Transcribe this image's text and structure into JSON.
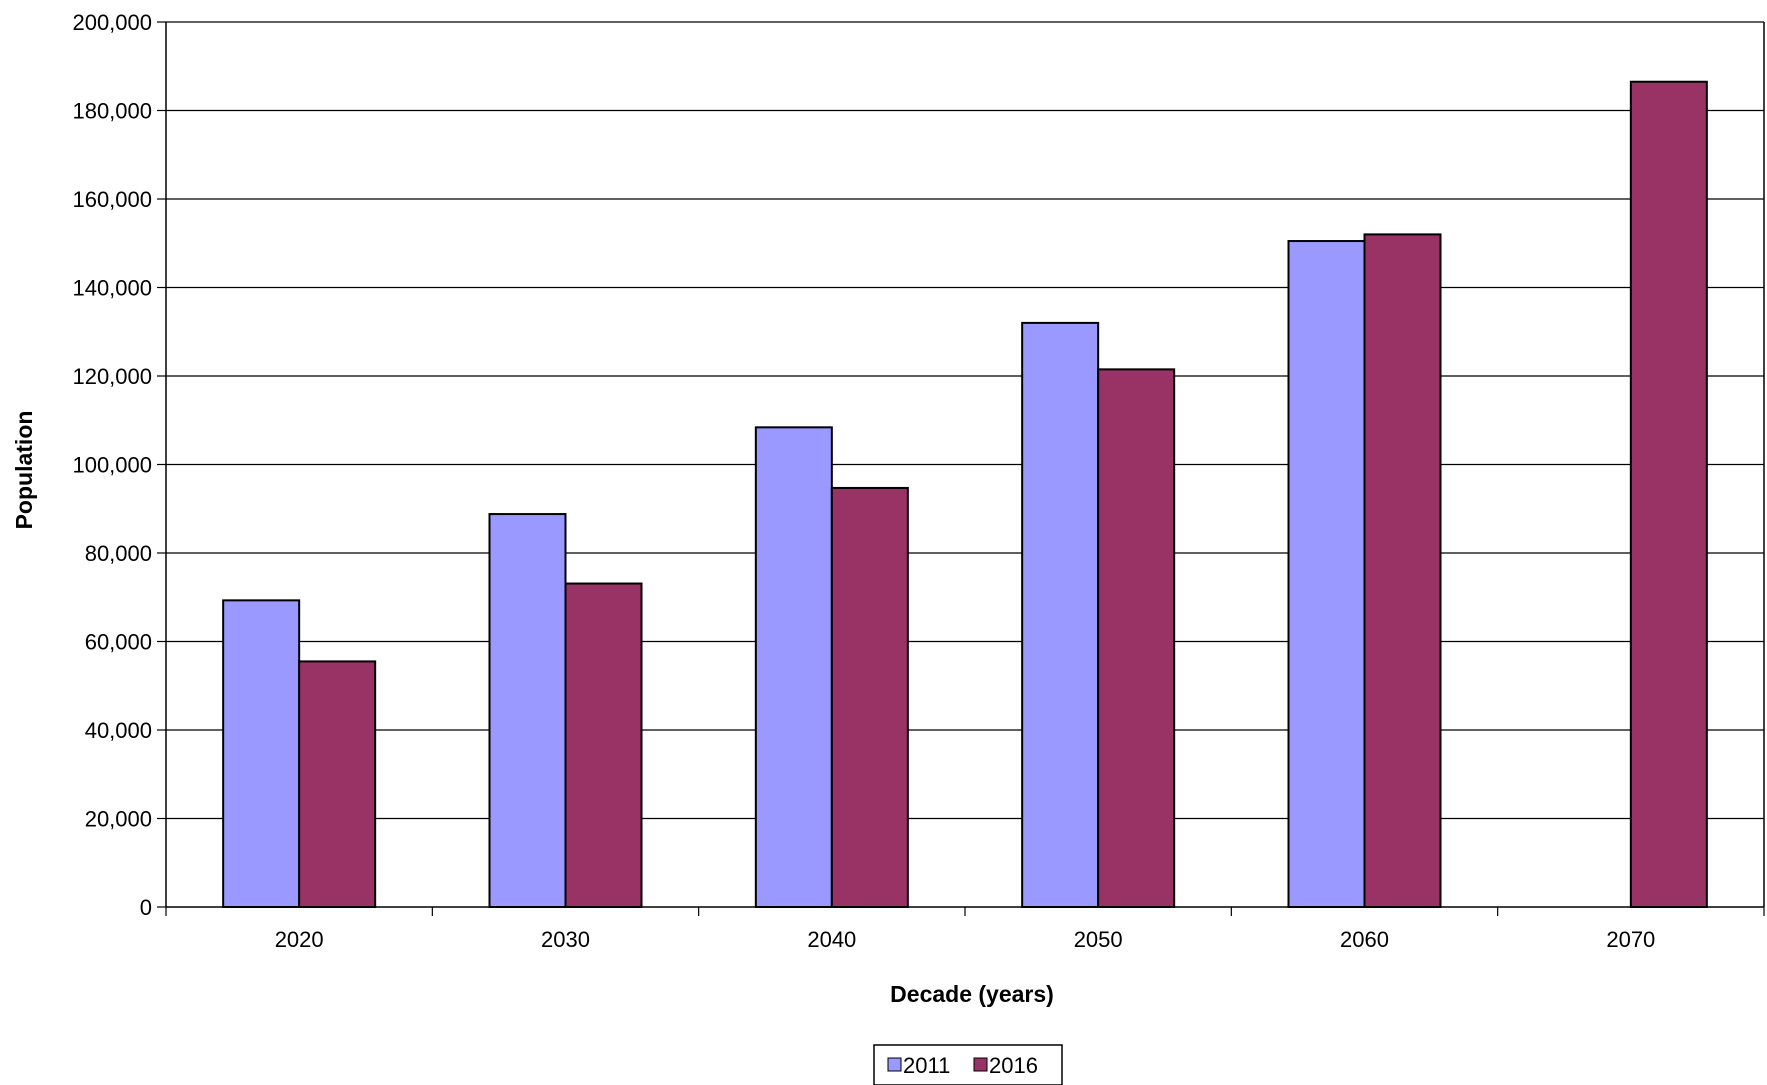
{
  "chart_data": {
    "type": "bar",
    "categories": [
      "2020",
      "2030",
      "2040",
      "2050",
      "2060",
      "2070"
    ],
    "series": [
      {
        "name": "2011",
        "color": "#9999ff",
        "values": [
          69300,
          88800,
          108400,
          132000,
          150500,
          null
        ]
      },
      {
        "name": "2016",
        "color": "#993366",
        "values": [
          55500,
          73100,
          94700,
          121500,
          152000,
          186500
        ]
      }
    ],
    "xlabel": "Decade (years)",
    "ylabel": "Population",
    "ylim": [
      0,
      200000
    ],
    "yticks": [
      0,
      20000,
      40000,
      60000,
      80000,
      100000,
      120000,
      140000,
      160000,
      180000,
      200000
    ],
    "ytick_labels": [
      "0",
      "20,000",
      "40,000",
      "60,000",
      "80,000",
      "100,000",
      "120,000",
      "140,000",
      "160,000",
      "180,000",
      "200,000"
    ],
    "grid": true,
    "legend_position": "bottom-center"
  }
}
